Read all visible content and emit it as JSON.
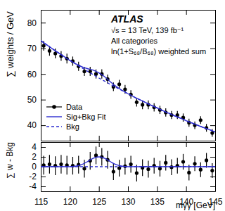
{
  "chart_data": [
    {
      "type": "line",
      "ylabel": "∑ weights / GeV",
      "annotations": [
        "ATLAS",
        "√s = 13 TeV, 139 fb⁻¹",
        "All categories",
        "ln(1+S₆₈/B₆₈) weighted sum"
      ],
      "xlim": [
        115,
        145
      ],
      "xticks": [
        115,
        120,
        125,
        130,
        135,
        140,
        145
      ],
      "ylim": [
        34,
        85
      ],
      "yticks": [
        40,
        50,
        60,
        70,
        80
      ],
      "tick_labels": "y",
      "legend": "lower left",
      "series": [
        {
          "name": "Data",
          "type": "scatter",
          "color": "#000000",
          "marker": "circle",
          "x": [
            115.5,
            116.5,
            117.5,
            118.5,
            119.5,
            120.5,
            121.5,
            122.5,
            123.5,
            124.5,
            125.5,
            126.5,
            127.5,
            128.5,
            129.5,
            130.5,
            131.5,
            132.5,
            133.5,
            134.5,
            135.5,
            136.5,
            137.5,
            138.5,
            139.5,
            140.5,
            141.5,
            142.5,
            143.5,
            144.5
          ],
          "values": [
            71,
            69,
            68,
            67,
            66,
            65,
            63,
            61,
            61,
            60,
            60,
            58,
            55,
            56,
            54,
            52,
            49,
            48,
            48,
            47,
            46,
            45,
            44,
            44,
            43,
            41,
            40,
            42,
            39,
            37
          ],
          "errors": [
            1.9,
            1.9,
            1.9,
            1.9,
            1.9,
            1.8,
            1.8,
            1.8,
            1.8,
            1.8,
            1.8,
            1.8,
            1.7,
            1.7,
            1.7,
            1.7,
            1.7,
            1.7,
            1.7,
            1.6,
            1.6,
            1.6,
            1.6,
            1.6,
            1.6,
            1.6,
            1.5,
            1.5,
            1.5,
            1.5
          ]
        },
        {
          "name": "Sig+Bkg Fit",
          "type": "line",
          "color": "#2b2bd0",
          "line_style": "solid",
          "x": [
            115,
            116,
            117,
            118,
            119,
            120,
            121,
            122,
            123,
            124,
            125,
            126,
            127,
            128,
            129,
            130,
            131,
            132,
            133,
            134,
            135,
            136,
            137,
            138,
            139,
            140,
            141,
            142,
            143,
            144,
            145
          ],
          "values": [
            73.0,
            71.4,
            69.8,
            68.3,
            66.8,
            65.3,
            64.0,
            62.9,
            62.1,
            61.5,
            60.4,
            58.9,
            56.9,
            55.1,
            53.6,
            52.3,
            51.1,
            50.0,
            48.9,
            47.8,
            46.8,
            45.7,
            44.7,
            43.7,
            42.8,
            41.8,
            40.9,
            40.0,
            39.1,
            38.3,
            37.4
          ]
        },
        {
          "name": "Bkg",
          "type": "line",
          "color": "#2b2bd0",
          "line_style": "dashed",
          "x": [
            115,
            116,
            117,
            118,
            119,
            120,
            121,
            122,
            123,
            124,
            125,
            126,
            127,
            128,
            129,
            130,
            131,
            132,
            133,
            134,
            135,
            136,
            137,
            138,
            139,
            140,
            141,
            142,
            143,
            144,
            145
          ],
          "values": [
            73.0,
            71.4,
            69.8,
            68.3,
            66.8,
            65.3,
            63.9,
            62.5,
            61.1,
            59.8,
            58.4,
            57.2,
            55.9,
            54.7,
            53.5,
            52.3,
            51.1,
            50.0,
            48.9,
            47.8,
            46.8,
            45.7,
            44.7,
            43.7,
            42.8,
            41.8,
            40.9,
            40.0,
            39.1,
            38.3,
            37.4
          ]
        }
      ]
    },
    {
      "type": "line",
      "ylabel": "∑ w - Bkg",
      "xlabel": "mγγ [GeV]",
      "xlim": [
        115,
        145
      ],
      "xticks": [
        115,
        120,
        125,
        130,
        135,
        140,
        145
      ],
      "ylim": [
        -5,
        5
      ],
      "yticks": [
        -4,
        -2,
        0,
        2,
        4
      ],
      "series": [
        {
          "type": "scatter",
          "color": "#000000",
          "marker": "circle",
          "x": [
            115.5,
            116.5,
            117.5,
            118.5,
            119.5,
            120.5,
            121.5,
            122.5,
            123.5,
            124.5,
            125.5,
            126.5,
            127.5,
            128.5,
            129.5,
            130.5,
            131.5,
            132.5,
            133.5,
            134.5,
            135.5,
            136.5,
            137.5,
            138.5,
            139.5,
            140.5,
            141.5,
            142.5,
            143.5,
            144.5
          ],
          "values": [
            0.3,
            0.5,
            0.2,
            0.5,
            0.3,
            0.2,
            0.4,
            -0.4,
            1.2,
            2.3,
            2.0,
            1.4,
            -1.0,
            -0.3,
            0.1,
            0.5,
            -1.3,
            -0.2,
            -0.5,
            0.2,
            -0.4,
            0.8,
            -0.1,
            0.2,
            1.0,
            -1.2,
            0.6,
            -0.6,
            1.3,
            -0.8
          ],
          "errors": [
            1.9,
            1.9,
            1.9,
            1.9,
            1.9,
            1.8,
            1.8,
            1.8,
            1.8,
            1.8,
            1.8,
            1.8,
            1.7,
            1.7,
            1.7,
            1.7,
            1.7,
            1.7,
            1.7,
            1.6,
            1.6,
            1.6,
            1.6,
            1.6,
            1.6,
            1.6,
            1.5,
            1.5,
            1.5,
            1.5
          ]
        },
        {
          "type": "line",
          "color": "#2b2bd0",
          "line_style": "solid",
          "x": [
            115,
            116,
            117,
            118,
            119,
            120,
            121,
            122,
            123,
            124,
            125,
            126,
            127,
            128,
            129,
            130,
            131,
            132,
            133,
            134,
            135,
            136,
            137,
            138,
            139,
            140,
            141,
            142,
            143,
            144,
            145
          ],
          "values": [
            0,
            0,
            0,
            0,
            0,
            0,
            0.1,
            0.4,
            1.0,
            1.7,
            2.0,
            1.7,
            1.0,
            0.4,
            0.1,
            0,
            0,
            0,
            0,
            0,
            0,
            0,
            0,
            0,
            0,
            0,
            0,
            0,
            0,
            0,
            0
          ]
        },
        {
          "type": "line",
          "color": "#2b2bd0",
          "line_style": "dashed",
          "x": [
            115,
            145
          ],
          "values": [
            0,
            0
          ]
        }
      ]
    }
  ]
}
